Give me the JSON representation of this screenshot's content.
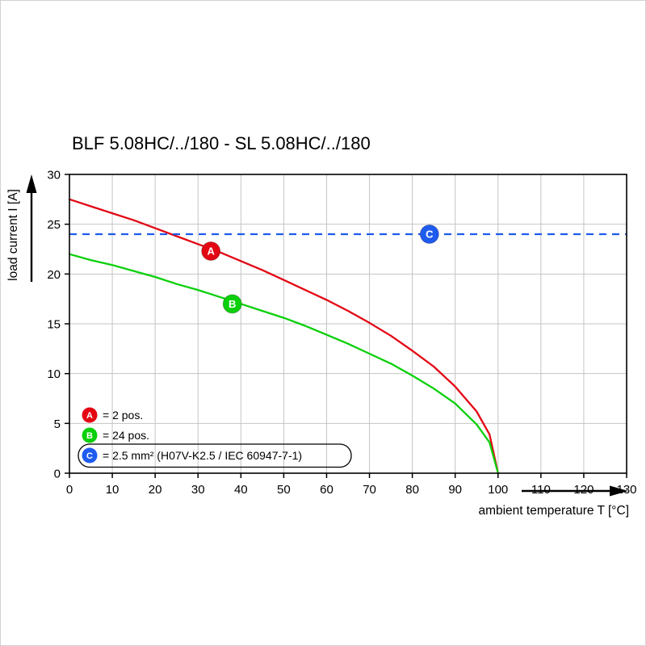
{
  "title": "BLF 5.08HC/../180 - SL 5.08HC/../180",
  "axes": {
    "y_label": "load current I [A]",
    "x_label": "ambient temperature T [°C]"
  },
  "legend": {
    "items": [
      {
        "letter": "A",
        "label": "= 2 pos.",
        "color": "#e30613"
      },
      {
        "letter": "B",
        "label": "= 24 pos.",
        "color": "#0ad00a"
      },
      {
        "letter": "C",
        "label": "= 2.5 mm² (H07V-K2.5 / IEC 60947-7-1)",
        "color": "#1e5bef",
        "boxed": true
      }
    ]
  },
  "chart_data": {
    "type": "line",
    "title": "BLF 5.08HC/../180 - SL 5.08HC/../180",
    "xlabel": "ambient temperature T [°C]",
    "ylabel": "load current I [A]",
    "xlim": [
      0,
      130
    ],
    "ylim": [
      0,
      30
    ],
    "x_ticks": [
      0,
      10,
      20,
      30,
      40,
      50,
      60,
      70,
      80,
      90,
      100,
      110,
      120,
      130
    ],
    "y_ticks": [
      0,
      5,
      10,
      15,
      20,
      25,
      30
    ],
    "grid": true,
    "legend_position": "lower-left-inside",
    "series": [
      {
        "name": "A",
        "label": "2 pos.",
        "color": "#e30613",
        "style": "solid",
        "points": [
          [
            0,
            27.5
          ],
          [
            5,
            26.8
          ],
          [
            10,
            26.1
          ],
          [
            15,
            25.4
          ],
          [
            20,
            24.6
          ],
          [
            25,
            23.8
          ],
          [
            30,
            23.0
          ],
          [
            35,
            22.2
          ],
          [
            40,
            21.3
          ],
          [
            45,
            20.4
          ],
          [
            50,
            19.4
          ],
          [
            55,
            18.4
          ],
          [
            60,
            17.4
          ],
          [
            65,
            16.3
          ],
          [
            70,
            15.1
          ],
          [
            75,
            13.8
          ],
          [
            80,
            12.3
          ],
          [
            85,
            10.7
          ],
          [
            90,
            8.7
          ],
          [
            95,
            6.2
          ],
          [
            98,
            3.9
          ],
          [
            100,
            0
          ]
        ]
      },
      {
        "name": "B",
        "label": "24 pos.",
        "color": "#0ad00a",
        "style": "solid",
        "points": [
          [
            0,
            22.0
          ],
          [
            5,
            21.4
          ],
          [
            10,
            20.9
          ],
          [
            15,
            20.3
          ],
          [
            20,
            19.7
          ],
          [
            25,
            19.0
          ],
          [
            30,
            18.4
          ],
          [
            35,
            17.7
          ],
          [
            40,
            17.0
          ],
          [
            45,
            16.3
          ],
          [
            50,
            15.6
          ],
          [
            55,
            14.8
          ],
          [
            60,
            13.9
          ],
          [
            65,
            13.0
          ],
          [
            70,
            12.0
          ],
          [
            75,
            11.0
          ],
          [
            80,
            9.8
          ],
          [
            85,
            8.5
          ],
          [
            90,
            7.0
          ],
          [
            95,
            4.9
          ],
          [
            98,
            3.1
          ],
          [
            100,
            0
          ]
        ]
      },
      {
        "name": "C",
        "label": "2.5 mm² (H07V-K2.5 / IEC 60947-7-1)",
        "color": "#1e5bef",
        "style": "dashed",
        "type": "hline",
        "y": 24
      }
    ],
    "markers": [
      {
        "letter": "A",
        "x": 33,
        "y": 22.3,
        "color": "#e30613"
      },
      {
        "letter": "B",
        "x": 38,
        "y": 17.0,
        "color": "#0ad00a"
      },
      {
        "letter": "C",
        "x": 84,
        "y": 24.0,
        "color": "#1e5bef"
      }
    ]
  }
}
